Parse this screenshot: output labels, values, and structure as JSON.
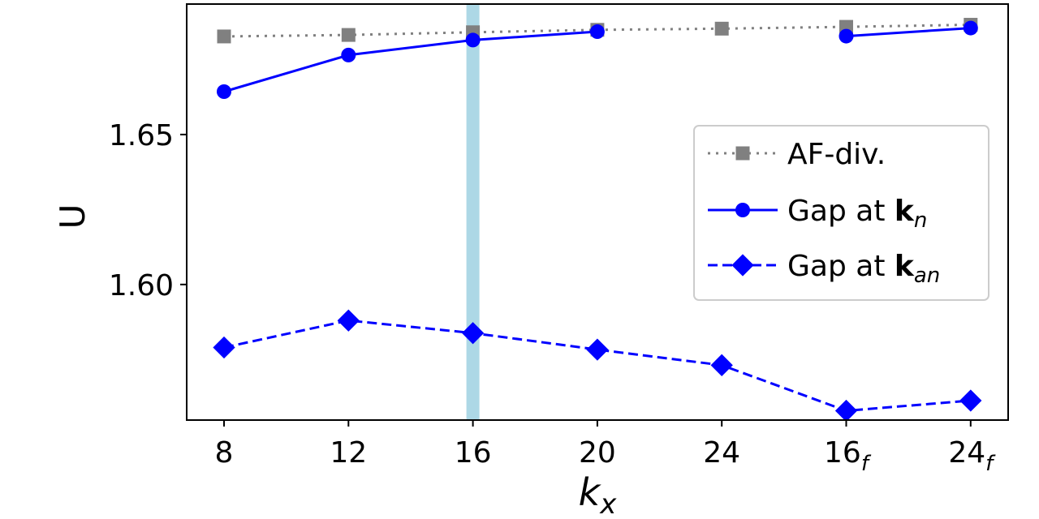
{
  "chart_data": {
    "type": "line",
    "categories": [
      "8",
      "12",
      "16",
      "20",
      "24",
      "16f",
      "24f"
    ],
    "category_labels": [
      {
        "main": "8",
        "sub": ""
      },
      {
        "main": "12",
        "sub": ""
      },
      {
        "main": "16",
        "sub": ""
      },
      {
        "main": "20",
        "sub": ""
      },
      {
        "main": "24",
        "sub": ""
      },
      {
        "main": "16",
        "sub": "f"
      },
      {
        "main": "24",
        "sub": "f"
      }
    ],
    "xlabel": {
      "main": "k",
      "sub": "x"
    },
    "ylabel": "U",
    "ylim": [
      1.5548,
      1.6935
    ],
    "yticks": [
      1.6,
      1.65
    ],
    "ytick_labels": [
      "1.60",
      "1.65"
    ],
    "grid": false,
    "legend_position": "center-right",
    "highlight_category": "16",
    "highlight_color": "#add8e6",
    "series": [
      {
        "name": "AF-div.",
        "name_bold": "",
        "name_sub": "",
        "values": [
          1.6827,
          1.6832,
          1.6841,
          1.6849,
          1.6853,
          1.6859,
          1.6866
        ],
        "color": "#808080",
        "line": "dotted",
        "marker": "square"
      },
      {
        "name": "Gap at ",
        "name_bold": "k",
        "name_sub": "n",
        "values": [
          1.6643,
          1.6765,
          1.6815,
          1.6843,
          null,
          1.6828,
          1.6855
        ],
        "color": "#0000ff",
        "line": "solid",
        "marker": "circle"
      },
      {
        "name": "Gap at ",
        "name_bold": "k",
        "name_sub": "an",
        "values": [
          1.579,
          1.588,
          1.5838,
          1.5783,
          1.5731,
          1.5579,
          1.5613
        ],
        "color": "#0000ff",
        "line": "dashed",
        "marker": "diamond"
      }
    ]
  }
}
